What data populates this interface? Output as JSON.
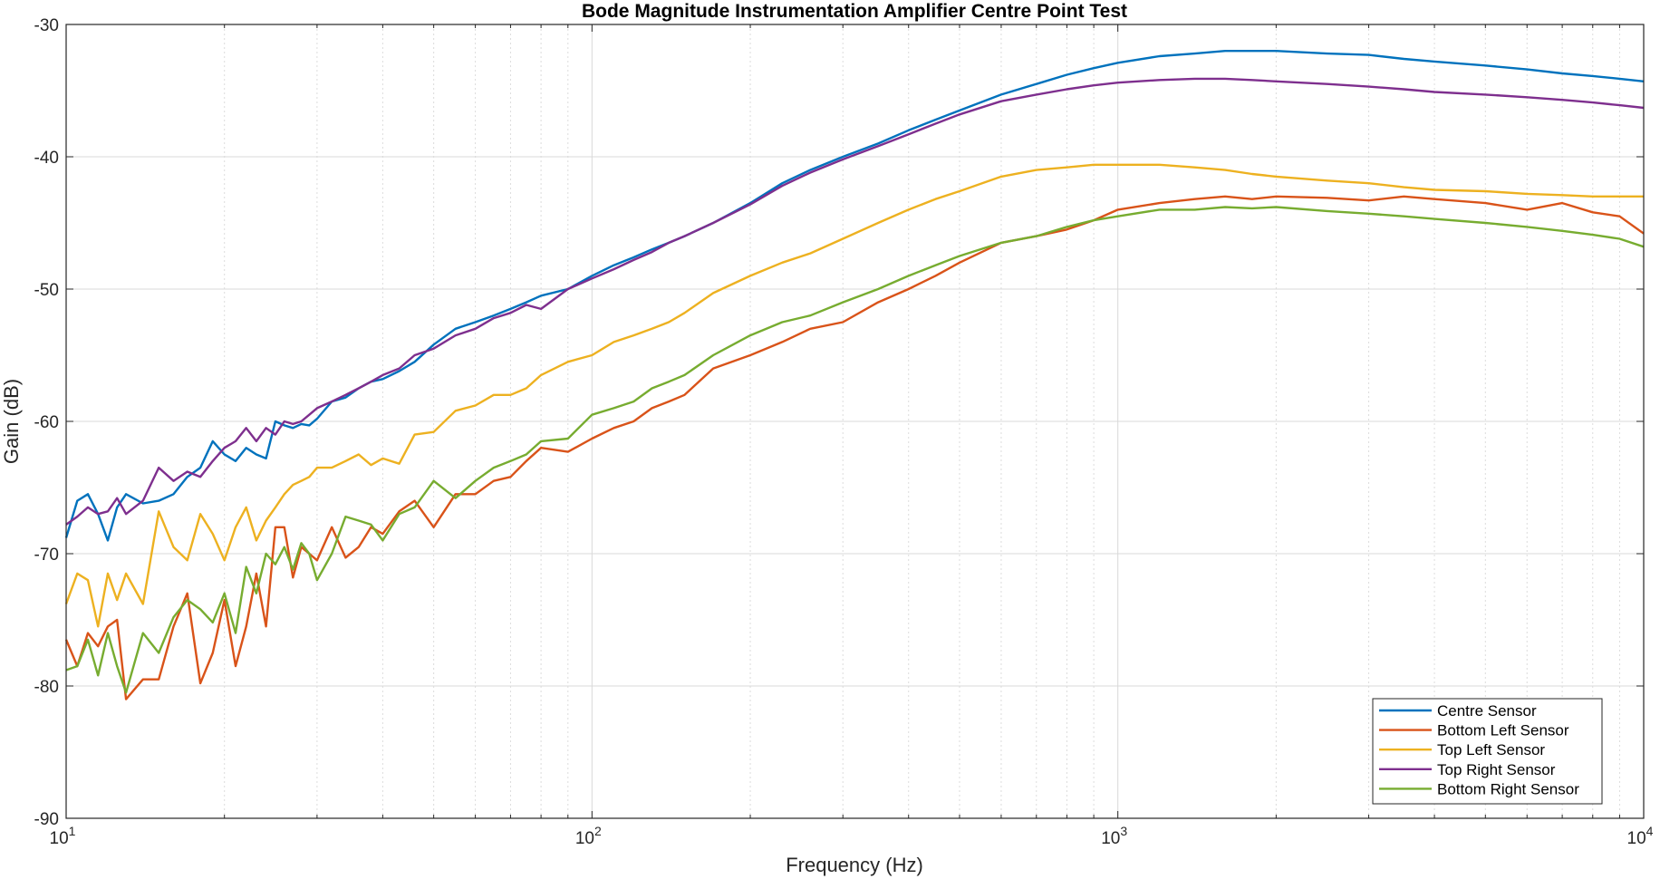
{
  "chart_data": {
    "type": "line",
    "title": "Bode Magnitude Instrumentation Amplifier Centre Point Test",
    "xlabel": "Frequency (Hz)",
    "ylabel": "Gain (dB)",
    "xscale": "log",
    "xlim": [
      10,
      10000
    ],
    "ylim": [
      -90,
      -30
    ],
    "grid": true,
    "minor_grid": true,
    "legend_position": "bottom-right",
    "x_ticks": [
      {
        "value": 10,
        "base": "10",
        "exp": "1"
      },
      {
        "value": 100,
        "base": "10",
        "exp": "2"
      },
      {
        "value": 1000,
        "base": "10",
        "exp": "3"
      },
      {
        "value": 10000,
        "base": "10",
        "exp": "4"
      }
    ],
    "y_ticks": [
      {
        "value": -30,
        "label": "-30"
      },
      {
        "value": -40,
        "label": "-40"
      },
      {
        "value": -50,
        "label": "-50"
      },
      {
        "value": -60,
        "label": "-60"
      },
      {
        "value": -70,
        "label": "-70"
      },
      {
        "value": -80,
        "label": "-80"
      },
      {
        "value": -90,
        "label": "-90"
      }
    ],
    "series": [
      {
        "name": "Centre Sensor",
        "color": "#0072BD",
        "x": [
          10,
          10.5,
          11,
          11.5,
          12,
          12.5,
          13,
          14,
          15,
          16,
          17,
          18,
          19,
          20,
          21,
          22,
          23,
          24,
          25,
          26,
          27,
          28,
          29,
          30,
          32,
          34,
          36,
          38,
          40,
          43,
          46,
          50,
          55,
          60,
          65,
          70,
          75,
          80,
          90,
          100,
          110,
          120,
          130,
          140,
          150,
          170,
          200,
          230,
          260,
          300,
          350,
          400,
          450,
          500,
          600,
          700,
          800,
          900,
          1000,
          1200,
          1400,
          1600,
          1800,
          2000,
          2500,
          3000,
          3500,
          4000,
          5000,
          6000,
          7000,
          8000,
          9000,
          10000
        ],
        "y": [
          -68.8,
          -66.0,
          -65.5,
          -67.0,
          -69.0,
          -66.5,
          -65.5,
          -66.2,
          -66.0,
          -65.5,
          -64.2,
          -63.5,
          -61.5,
          -62.5,
          -63.0,
          -62.0,
          -62.5,
          -62.8,
          -60.0,
          -60.3,
          -60.5,
          -60.2,
          -60.3,
          -59.8,
          -58.5,
          -58.2,
          -57.5,
          -57.0,
          -56.8,
          -56.2,
          -55.5,
          -54.2,
          -53.0,
          -52.5,
          -52.0,
          -51.5,
          -51.0,
          -50.5,
          -50.0,
          -49.0,
          -48.2,
          -47.6,
          -47.0,
          -46.5,
          -46.0,
          -45.0,
          -43.5,
          -42.0,
          -41.0,
          -40.0,
          -39.0,
          -38.0,
          -37.2,
          -36.5,
          -35.3,
          -34.5,
          -33.8,
          -33.3,
          -32.9,
          -32.4,
          -32.2,
          -32.0,
          -32.0,
          -32.0,
          -32.2,
          -32.3,
          -32.6,
          -32.8,
          -33.1,
          -33.4,
          -33.7,
          -33.9,
          -34.1,
          -34.3
        ]
      },
      {
        "name": "Bottom Left Sensor",
        "color": "#D95319",
        "x": [
          10,
          10.5,
          11,
          11.5,
          12,
          12.5,
          13,
          14,
          15,
          16,
          17,
          18,
          19,
          20,
          21,
          22,
          23,
          24,
          25,
          26,
          27,
          28,
          29,
          30,
          32,
          34,
          36,
          38,
          40,
          43,
          46,
          50,
          55,
          60,
          65,
          70,
          75,
          80,
          90,
          100,
          110,
          120,
          130,
          140,
          150,
          170,
          200,
          230,
          260,
          300,
          350,
          400,
          450,
          500,
          600,
          700,
          800,
          900,
          1000,
          1200,
          1400,
          1600,
          1800,
          2000,
          2500,
          3000,
          3500,
          4000,
          5000,
          6000,
          7000,
          8000,
          9000,
          10000
        ],
        "y": [
          -76.5,
          -78.5,
          -76.0,
          -77.0,
          -75.5,
          -75.0,
          -81.0,
          -79.5,
          -79.5,
          -75.5,
          -73.0,
          -79.8,
          -77.5,
          -73.5,
          -78.5,
          -75.5,
          -71.5,
          -75.5,
          -68.0,
          -68.0,
          -71.8,
          -69.5,
          -70.0,
          -70.5,
          -68.0,
          -70.3,
          -69.5,
          -68.0,
          -68.5,
          -66.8,
          -66.0,
          -68.0,
          -65.5,
          -65.5,
          -64.5,
          -64.2,
          -63.0,
          -62.0,
          -62.3,
          -61.3,
          -60.5,
          -60.0,
          -59.0,
          -58.5,
          -58.0,
          -56.0,
          -55.0,
          -54.0,
          -53.0,
          -52.5,
          -51.0,
          -50.0,
          -49.0,
          -48.0,
          -46.5,
          -46.0,
          -45.5,
          -44.8,
          -44.0,
          -43.5,
          -43.2,
          -43.0,
          -43.2,
          -43.0,
          -43.1,
          -43.3,
          -43.0,
          -43.2,
          -43.5,
          -44.0,
          -43.5,
          -44.2,
          -44.5,
          -45.8
        ]
      },
      {
        "name": "Top Left Sensor",
        "color": "#EDB120",
        "x": [
          10,
          10.5,
          11,
          11.5,
          12,
          12.5,
          13,
          14,
          15,
          16,
          17,
          18,
          19,
          20,
          21,
          22,
          23,
          24,
          25,
          26,
          27,
          28,
          29,
          30,
          32,
          34,
          36,
          38,
          40,
          43,
          46,
          50,
          55,
          60,
          65,
          70,
          75,
          80,
          90,
          100,
          110,
          120,
          130,
          140,
          150,
          170,
          200,
          230,
          260,
          300,
          350,
          400,
          450,
          500,
          600,
          700,
          800,
          900,
          1000,
          1200,
          1400,
          1600,
          1800,
          2000,
          2500,
          3000,
          3500,
          4000,
          5000,
          6000,
          7000,
          8000,
          9000,
          10000
        ],
        "y": [
          -73.8,
          -71.5,
          -72.0,
          -75.5,
          -71.5,
          -73.5,
          -71.5,
          -73.8,
          -66.8,
          -69.5,
          -70.5,
          -67.0,
          -68.5,
          -70.5,
          -68.0,
          -66.5,
          -69.0,
          -67.5,
          -66.5,
          -65.5,
          -64.8,
          -64.5,
          -64.2,
          -63.5,
          -63.5,
          -63.0,
          -62.5,
          -63.3,
          -62.8,
          -63.2,
          -61.0,
          -60.8,
          -59.2,
          -58.8,
          -58.0,
          -58.0,
          -57.5,
          -56.5,
          -55.5,
          -55.0,
          -54.0,
          -53.5,
          -53.0,
          -52.5,
          -51.8,
          -50.3,
          -49.0,
          -48.0,
          -47.3,
          -46.2,
          -45.0,
          -44.0,
          -43.2,
          -42.6,
          -41.5,
          -41.0,
          -40.8,
          -40.6,
          -40.6,
          -40.6,
          -40.8,
          -41.0,
          -41.3,
          -41.5,
          -41.8,
          -42.0,
          -42.3,
          -42.5,
          -42.6,
          -42.8,
          -42.9,
          -43.0,
          -43.0,
          -43.0
        ]
      },
      {
        "name": "Top Right Sensor",
        "color": "#7E2F8E",
        "x": [
          10,
          10.5,
          11,
          11.5,
          12,
          12.5,
          13,
          14,
          15,
          16,
          17,
          18,
          19,
          20,
          21,
          22,
          23,
          24,
          25,
          26,
          27,
          28,
          29,
          30,
          32,
          34,
          36,
          38,
          40,
          43,
          46,
          50,
          55,
          60,
          65,
          70,
          75,
          80,
          90,
          100,
          110,
          120,
          130,
          140,
          150,
          170,
          200,
          230,
          260,
          300,
          350,
          400,
          450,
          500,
          600,
          700,
          800,
          900,
          1000,
          1200,
          1400,
          1600,
          1800,
          2000,
          2500,
          3000,
          3500,
          4000,
          5000,
          6000,
          7000,
          8000,
          9000,
          10000
        ],
        "y": [
          -67.8,
          -67.2,
          -66.5,
          -67.0,
          -66.8,
          -65.8,
          -67.0,
          -66.0,
          -63.5,
          -64.5,
          -63.8,
          -64.2,
          -63.0,
          -62.0,
          -61.5,
          -60.5,
          -61.5,
          -60.5,
          -61.0,
          -60.0,
          -60.2,
          -60.0,
          -59.5,
          -59.0,
          -58.5,
          -58.0,
          -57.5,
          -57.0,
          -56.5,
          -56.0,
          -55.0,
          -54.5,
          -53.5,
          -53.0,
          -52.2,
          -51.8,
          -51.2,
          -51.5,
          -50.0,
          -49.2,
          -48.5,
          -47.8,
          -47.2,
          -46.5,
          -46.0,
          -45.0,
          -43.6,
          -42.2,
          -41.2,
          -40.2,
          -39.2,
          -38.3,
          -37.5,
          -36.8,
          -35.8,
          -35.3,
          -34.9,
          -34.6,
          -34.4,
          -34.2,
          -34.1,
          -34.1,
          -34.2,
          -34.3,
          -34.5,
          -34.7,
          -34.9,
          -35.1,
          -35.3,
          -35.5,
          -35.7,
          -35.9,
          -36.1,
          -36.3
        ]
      },
      {
        "name": "Bottom Right Sensor",
        "color": "#77AC30",
        "x": [
          10,
          10.5,
          11,
          11.5,
          12,
          12.5,
          13,
          14,
          15,
          16,
          17,
          18,
          19,
          20,
          21,
          22,
          23,
          24,
          25,
          26,
          27,
          28,
          29,
          30,
          32,
          34,
          36,
          38,
          40,
          43,
          46,
          50,
          55,
          60,
          65,
          70,
          75,
          80,
          90,
          100,
          110,
          120,
          130,
          140,
          150,
          170,
          200,
          230,
          260,
          300,
          350,
          400,
          450,
          500,
          600,
          700,
          800,
          900,
          1000,
          1200,
          1400,
          1600,
          1800,
          2000,
          2500,
          3000,
          3500,
          4000,
          5000,
          6000,
          7000,
          8000,
          9000,
          10000
        ],
        "y": [
          -78.8,
          -78.5,
          -76.5,
          -79.2,
          -76.0,
          -78.5,
          -80.5,
          -76.0,
          -77.5,
          -74.8,
          -73.5,
          -74.2,
          -75.2,
          -73.0,
          -76.0,
          -71.0,
          -73.0,
          -70.0,
          -70.8,
          -69.5,
          -71.2,
          -69.2,
          -70.0,
          -72.0,
          -70.0,
          -67.2,
          -67.5,
          -67.8,
          -69.0,
          -67.0,
          -66.5,
          -64.5,
          -65.8,
          -64.5,
          -63.5,
          -63.0,
          -62.5,
          -61.5,
          -61.3,
          -59.5,
          -59.0,
          -58.5,
          -57.5,
          -57.0,
          -56.5,
          -55.0,
          -53.5,
          -52.5,
          -52.0,
          -51.0,
          -50.0,
          -49.0,
          -48.2,
          -47.5,
          -46.5,
          -46.0,
          -45.3,
          -44.8,
          -44.5,
          -44.0,
          -44.0,
          -43.8,
          -43.9,
          -43.8,
          -44.1,
          -44.3,
          -44.5,
          -44.7,
          -45.0,
          -45.3,
          -45.6,
          -45.9,
          -46.2,
          -46.8
        ]
      }
    ]
  }
}
